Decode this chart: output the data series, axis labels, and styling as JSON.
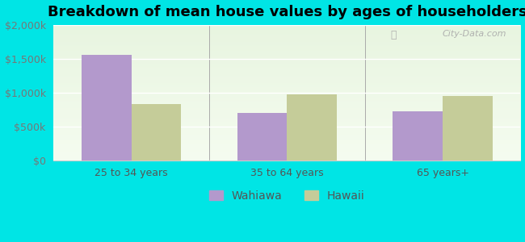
{
  "title": "Breakdown of mean house values by ages of householders",
  "categories": [
    "25 to 34 years",
    "35 to 64 years",
    "65 years+"
  ],
  "wahiawa_values": [
    1550000,
    700000,
    725000
  ],
  "hawaii_values": [
    825000,
    975000,
    950000
  ],
  "wahiawa_color": "#b399cc",
  "hawaii_color": "#c5cc99",
  "background_outer": "#00e5e5",
  "background_inner_top": "#f0f8e8",
  "background_inner_bottom": "#d8edcc",
  "ylim": [
    0,
    2000000
  ],
  "yticks": [
    0,
    500000,
    1000000,
    1500000,
    2000000
  ],
  "ytick_labels": [
    "$0",
    "$500k",
    "$1,000k",
    "$1,500k",
    "$2,000k"
  ],
  "bar_width": 0.32,
  "legend_labels": [
    "Wahiawa",
    "Hawaii"
  ],
  "watermark": "City-Data.com",
  "title_fontsize": 13,
  "tick_fontsize": 9,
  "legend_fontsize": 10,
  "ytick_color": "#777777",
  "xtick_color": "#555555"
}
